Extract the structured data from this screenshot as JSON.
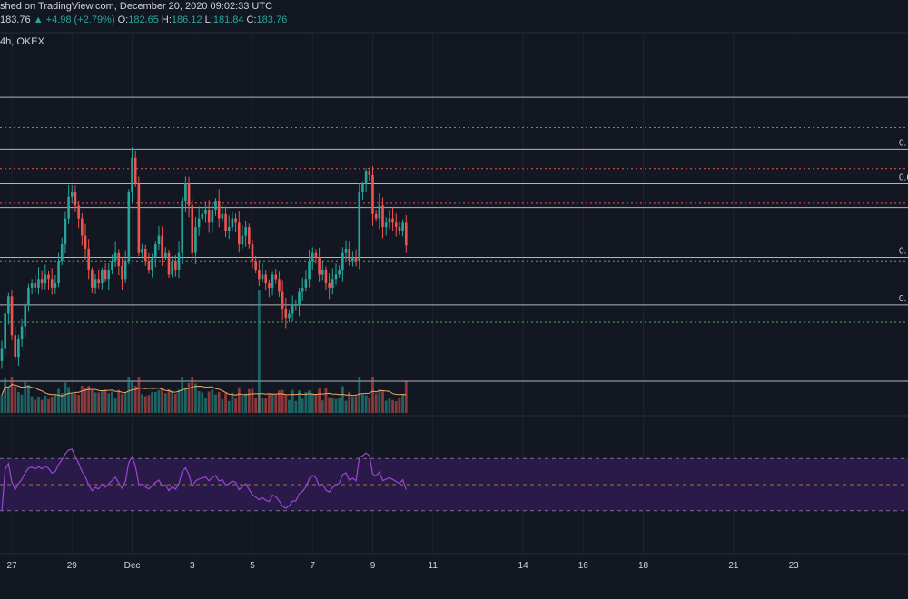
{
  "header": {
    "published": "shed on TradingView.com, December 20, 2020 09:02:33 UTC",
    "price": "183.76",
    "change": "+4.98 (+2.79%)",
    "o_label": "O:",
    "o": "182.65",
    "h_label": "H:",
    "h": "186.12",
    "l_label": "L:",
    "l": "181.84",
    "c_label": "C:",
    "c": "183.76",
    "interval_exchange": "4h, OKEX"
  },
  "colors": {
    "background": "#131722",
    "bull": "#26a69a",
    "bear": "#ef5350",
    "fib_line": "#b2b5be",
    "red_dotted": "#ef5350",
    "green_dotted": "#4caf50",
    "volume_ma": "#f0a868",
    "rsi_line": "#9b46d4",
    "rsi_band": "#2a1a4a",
    "text": "#d1d4dc"
  },
  "chart_data": {
    "type": "candlestick",
    "price_axis_visible": false,
    "fib_levels": [
      {
        "label": "",
        "price": 218.0
      },
      {
        "label": "0.",
        "price": 206.0
      },
      {
        "label": "0.6",
        "price": 198.0
      },
      {
        "label": "",
        "price": 192.5
      },
      {
        "label": "0.",
        "price": 181.0
      },
      {
        "label": "0.",
        "price": 170.0
      }
    ],
    "red_dotted_levels": [
      211.0,
      201.5,
      193.5
    ],
    "green_dotted_levels": [
      180.0,
      166.0
    ],
    "x_ticks": [
      {
        "label": "27",
        "i": 3
      },
      {
        "label": "29",
        "i": 21
      },
      {
        "label": "Dec",
        "i": 39
      },
      {
        "label": "3",
        "i": 57
      },
      {
        "label": "5",
        "i": 75
      },
      {
        "label": "7",
        "i": 93
      },
      {
        "label": "9",
        "i": 111
      },
      {
        "label": "11",
        "i": 129
      },
      {
        "label": "14",
        "i": 156
      },
      {
        "label": "16",
        "i": 174
      },
      {
        "label": "18",
        "i": 192
      },
      {
        "label": "21",
        "i": 219
      },
      {
        "label": "23",
        "i": 237
      }
    ],
    "rsi_levels": [
      70,
      50,
      30
    ],
    "ohlc_close": [
      160,
      168,
      172,
      163,
      158,
      162,
      165,
      170,
      174,
      175,
      174,
      176,
      175,
      177,
      176,
      174,
      175,
      180,
      184,
      190,
      195,
      196,
      193,
      190,
      186,
      183,
      178,
      174,
      176,
      175,
      178,
      176,
      178,
      180,
      182,
      179,
      176,
      180,
      196,
      204,
      198,
      182,
      183,
      180,
      178,
      181,
      184,
      186,
      181,
      182,
      177,
      180,
      178,
      182,
      194,
      198,
      193,
      182,
      188,
      190,
      191,
      192,
      189,
      192,
      194,
      190,
      191,
      187,
      188,
      190,
      189,
      184,
      186,
      188,
      184,
      180,
      178,
      176,
      177,
      175,
      174,
      177,
      176,
      173,
      169,
      167,
      168,
      170,
      170,
      173,
      174,
      176,
      180,
      182,
      181,
      177,
      178,
      175,
      174,
      176,
      177,
      178,
      182,
      183,
      180,
      181,
      180,
      196,
      198,
      201,
      200,
      191,
      190,
      193,
      188,
      189,
      190,
      189,
      188,
      187,
      189,
      183.76
    ],
    "volume_source": "relative values",
    "rsi_values": "relative values"
  }
}
